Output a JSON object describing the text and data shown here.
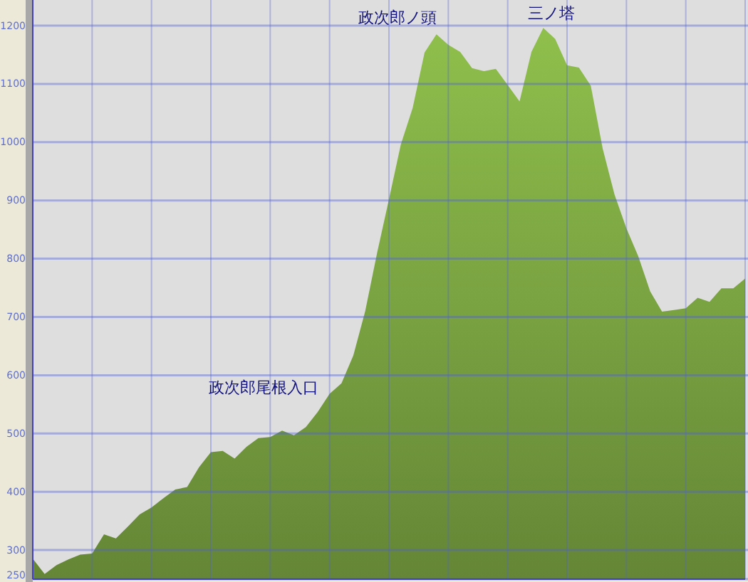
{
  "chart_data": {
    "type": "area",
    "categories": [
      null,
      null,
      null,
      null,
      null,
      null,
      null,
      null,
      null,
      null,
      null,
      null,
      null,
      null,
      null,
      null,
      null,
      null,
      null,
      null,
      null,
      null,
      null,
      null,
      null,
      null,
      null,
      null,
      null,
      null,
      null,
      null,
      null,
      null,
      null,
      null,
      null,
      null,
      null,
      null,
      null,
      null,
      null,
      null,
      null,
      null,
      null,
      null,
      null,
      null,
      null,
      null,
      null,
      null,
      null,
      null,
      null,
      null,
      null,
      null,
      null
    ],
    "series": [
      {
        "color": "#78a040",
        "values": [
          285,
          259,
          274,
          284,
          292,
          294,
          327,
          320,
          340,
          361,
          373,
          389,
          404,
          408,
          442,
          468,
          470,
          457,
          477,
          492,
          494,
          505,
          497,
          511,
          537,
          568,
          586,
          634,
          710,
          810,
          902,
          996,
          1059,
          1154,
          1185,
          1167,
          1155,
          1127,
          1122,
          1126,
          1098,
          1070,
          1155,
          1196,
          1177,
          1132,
          1128,
          1097,
          989,
          910,
          852,
          804,
          744,
          709,
          712,
          715,
          733,
          726,
          749,
          749,
          766
        ]
      }
    ],
    "ylim": [
      250,
      1244
    ],
    "yticks": [
      250,
      300,
      400,
      500,
      600,
      700,
      800,
      900,
      1000,
      1100,
      1200
    ],
    "grid": true,
    "annotations": [
      "政次郎ノ頭",
      "三ノ塔",
      "政次郎尾根入口"
    ]
  }
}
